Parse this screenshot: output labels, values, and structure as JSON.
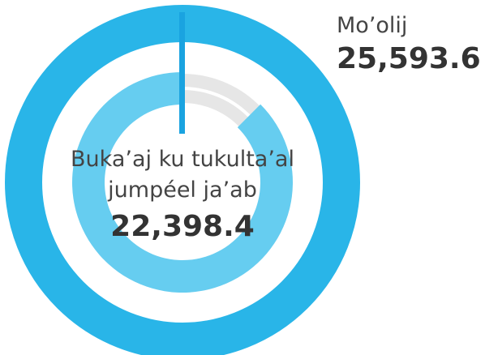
{
  "chart_data": {
    "type": "donut",
    "labels": [
      [
        "Mo’olij"
      ],
      [
        "Buka’aj ku tukulta’al",
        "jumpéel ja’ab"
      ]
    ],
    "values": [
      25593.6,
      22398.4
    ],
    "value_labels": [
      "25,593.6",
      "22,398.4"
    ],
    "colors": [
      "#29b5e8",
      "#66cdf0"
    ],
    "track_color": "#e6e6e6",
    "marker_color": "#1aa3e0"
  }
}
